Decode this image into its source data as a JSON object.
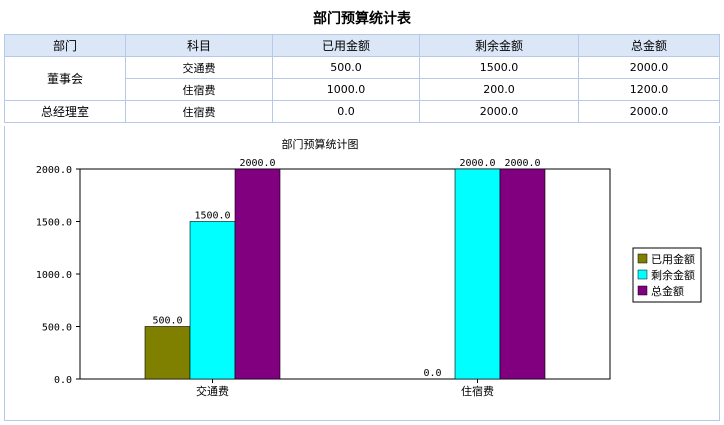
{
  "page": {
    "title": "部门预算统计表"
  },
  "table": {
    "headers": [
      "部门",
      "科目",
      "已用金额",
      "剩余金额",
      "总金额"
    ],
    "groups": [
      {
        "dept": "董事会",
        "rows": [
          {
            "subject": "交通费",
            "used": "500.0",
            "remaining": "1500.0",
            "total": "2000.0"
          },
          {
            "subject": "住宿费",
            "used": "1000.0",
            "remaining": "200.0",
            "total": "1200.0"
          }
        ]
      },
      {
        "dept": "总经理室",
        "rows": [
          {
            "subject": "住宿费",
            "used": "0.0",
            "remaining": "2000.0",
            "total": "2000.0"
          }
        ]
      }
    ]
  },
  "chart_data": {
    "type": "bar",
    "title": "部门预算统计图",
    "categories": [
      "交通费",
      "住宿费"
    ],
    "series": [
      {
        "name": "已用金额",
        "color": "#808000",
        "values": [
          500.0,
          0.0
        ],
        "labels": [
          "500.0",
          "0.0"
        ]
      },
      {
        "name": "剩余金额",
        "color": "#00ffff",
        "values": [
          1500.0,
          2000.0
        ],
        "labels": [
          "1500.0",
          "2000.0"
        ]
      },
      {
        "name": "总金额",
        "color": "#800080",
        "values": [
          2000.0,
          2000.0
        ],
        "labels": [
          "2000.0",
          "2000.0"
        ]
      }
    ],
    "yticks": [
      "0.0",
      "500.0",
      "1000.0",
      "1500.0",
      "2000.0"
    ],
    "ylim": [
      0,
      2000
    ],
    "legend": "right",
    "grid": false
  }
}
